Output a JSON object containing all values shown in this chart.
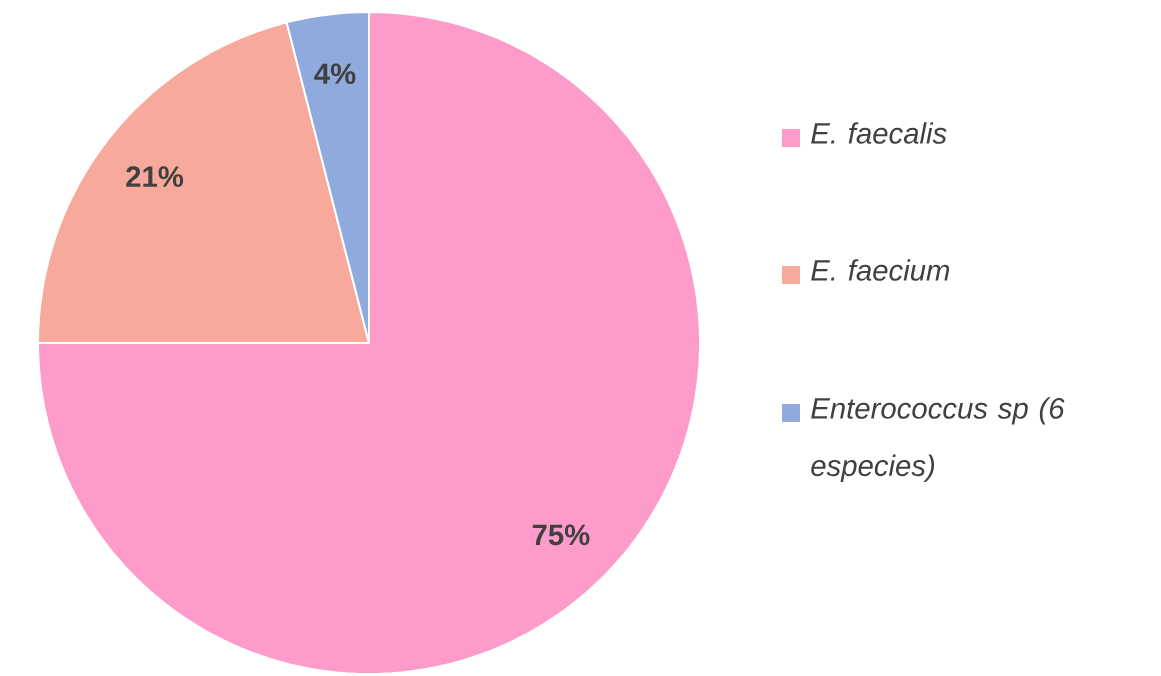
{
  "chart_data": {
    "type": "pie",
    "categories": [
      "E. faecalis",
      "E. faecium",
      "Enterococcus sp (6 especies)"
    ],
    "values": [
      75,
      21,
      4
    ],
    "colors": [
      "#fd9bcb",
      "#f7aa9b",
      "#8faadc"
    ],
    "value_labels": [
      "75%",
      "21%",
      "4%"
    ],
    "legend": "right"
  }
}
